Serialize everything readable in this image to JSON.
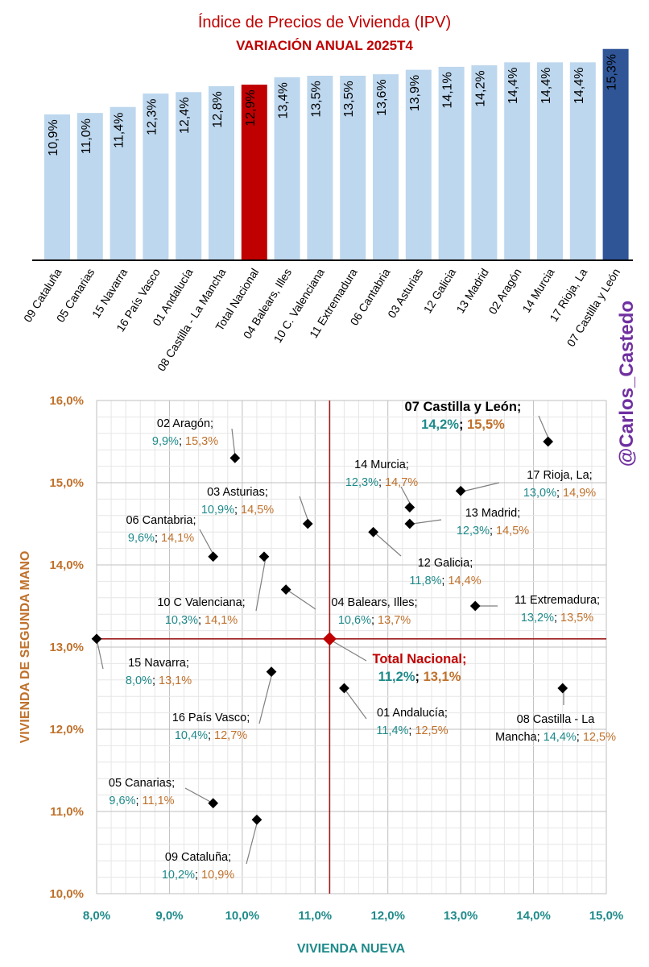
{
  "bar_chart": {
    "title": "Índice de Precios de Vivienda (IPV)",
    "subtitle": "VARIACIÓN ANUAL 2025T4",
    "colors": {
      "default": "#bdd7ee",
      "national": "#c00000",
      "max": "#2f5597"
    }
  },
  "scatter_chart": {
    "xlabel": "VIVIENDA NUEVA",
    "ylabel": "VIVIENDA DE SEGUNDA MANO"
  },
  "handle": "@Carlos_Castedo",
  "chart_data": [
    {
      "type": "bar",
      "title": "Índice de Precios de Vivienda (IPV)",
      "subtitle": "VARIACIÓN ANUAL 2025T4",
      "categories": [
        "09 Cataluña",
        "05 Canarias",
        "15 Navarra",
        "16 País Vasco",
        "01 Andalucía",
        "08 Castilla - La Mancha",
        "Total Nacional",
        "04 Balears, Illes",
        "10 C. Valenciana",
        "11 Extremadura",
        "06 Cantabria",
        "03 Asturias",
        "12 Galicia",
        "13 Madrid",
        "02 Aragón",
        "14 Murcia",
        "17 Rioja, La",
        "07 Castilla y León"
      ],
      "values": [
        10.9,
        11.0,
        11.4,
        12.3,
        12.4,
        12.8,
        12.9,
        13.4,
        13.5,
        13.5,
        13.6,
        13.9,
        14.1,
        14.2,
        14.4,
        14.4,
        14.4,
        15.3
      ],
      "value_labels": [
        "10,9%",
        "11,0%",
        "11,4%",
        "12,3%",
        "12,4%",
        "12,8%",
        "12,9%",
        "13,4%",
        "13,5%",
        "13,5%",
        "13,6%",
        "13,9%",
        "14,1%",
        "14,2%",
        "14,4%",
        "14,4%",
        "14,4%",
        "15,3%"
      ],
      "highlight": {
        "Total Nacional": "national",
        "07 Castilla y León": "max"
      }
    },
    {
      "type": "scatter",
      "xlabel": "VIVIENDA NUEVA",
      "ylabel": "VIVIENDA DE SEGUNDA MANO",
      "xlim": [
        8.0,
        15.0
      ],
      "ylim": [
        10.0,
        16.0
      ],
      "x_ticks": [
        "8,0%",
        "9,0%",
        "10,0%",
        "11,0%",
        "12,0%",
        "13,0%",
        "14,0%",
        "15,0%"
      ],
      "y_ticks": [
        "10,0%",
        "11,0%",
        "12,0%",
        "13,0%",
        "14,0%",
        "15,0%",
        "16,0%"
      ],
      "reference_lines": {
        "x": 11.2,
        "y": 13.1
      },
      "points": [
        {
          "name": "02 Aragón;",
          "x": 9.9,
          "y": 15.3,
          "xl": "9,9%",
          "yl": "15,3%"
        },
        {
          "name": "03 Asturias;",
          "x": 10.9,
          "y": 14.5,
          "xl": "10,9%",
          "yl": "14,5%"
        },
        {
          "name": "06 Cantabria;",
          "x": 9.6,
          "y": 14.1,
          "xl": "9,6%",
          "yl": "14,1%"
        },
        {
          "name": "10 C Valenciana;",
          "x": 10.3,
          "y": 14.1,
          "xl": "10,3%",
          "yl": "14,1%"
        },
        {
          "name": "04 Balears, Illes;",
          "x": 10.6,
          "y": 13.7,
          "xl": "10,6%",
          "yl": "13,7%"
        },
        {
          "name": "15 Navarra;",
          "x": 8.0,
          "y": 13.1,
          "xl": "8,0%",
          "yl": "13,1%"
        },
        {
          "name": "16 País Vasco;",
          "x": 10.4,
          "y": 12.7,
          "xl": "10,4%",
          "yl": "12,7%"
        },
        {
          "name": "05 Canarias;",
          "x": 9.6,
          "y": 11.1,
          "xl": "9,6%",
          "yl": "11,1%"
        },
        {
          "name": "09 Cataluña;",
          "x": 10.2,
          "y": 10.9,
          "xl": "10,2%",
          "yl": "10,9%"
        },
        {
          "name": "14 Murcia;",
          "x": 12.3,
          "y": 14.7,
          "xl": "12,3%",
          "yl": "14,7%"
        },
        {
          "name": "13 Madrid;",
          "x": 12.3,
          "y": 14.5,
          "xl": "12,3%",
          "yl": "14,5%"
        },
        {
          "name": "12 Galicia;",
          "x": 11.8,
          "y": 14.4,
          "xl": "11,8%",
          "yl": "14,4%"
        },
        {
          "name": "17 Rioja, La;",
          "x": 13.0,
          "y": 14.9,
          "xl": "13,0%",
          "yl": "14,9%"
        },
        {
          "name": "07 Castilla y León;",
          "x": 14.2,
          "y": 15.5,
          "xl": "14,2%",
          "yl": "15,5%",
          "emphasis": true
        },
        {
          "name": "11 Extremadura;",
          "x": 13.2,
          "y": 13.5,
          "xl": "13,2%",
          "yl": "13,5%"
        },
        {
          "name": "01 Andalucía;",
          "x": 11.4,
          "y": 12.5,
          "xl": "11,4%",
          "yl": "12,5%"
        },
        {
          "name": "08 Castilla - La",
          "name2": "Mancha;",
          "x": 14.4,
          "y": 12.5,
          "xl": "14,4%",
          "yl": "12,5%"
        },
        {
          "name": "Total Nacional;",
          "x": 11.2,
          "y": 13.1,
          "xl": "11,2%",
          "yl": "13,1%",
          "national": true
        }
      ]
    }
  ]
}
